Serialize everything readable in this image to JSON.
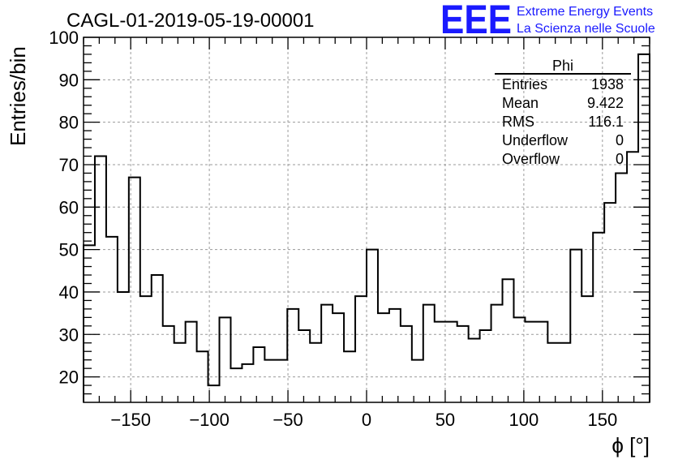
{
  "chart_data": {
    "type": "histogram",
    "title": "CAGL-01-2019-05-19-00001",
    "xlabel": "ϕ [°]",
    "ylabel": "Entries/bin",
    "xlim": [
      -180,
      180
    ],
    "ylim": [
      14,
      100
    ],
    "grid": true,
    "bin_edges_start": -180,
    "bin_width": 7.2,
    "values": [
      51,
      72,
      53,
      40,
      67,
      39,
      44,
      32,
      28,
      33,
      26,
      18,
      34,
      22,
      23,
      27,
      24,
      24,
      36,
      31,
      28,
      37,
      35,
      26,
      39,
      50,
      35,
      36,
      32,
      24,
      37,
      33,
      33,
      32,
      29,
      31,
      37,
      43,
      34,
      33,
      33,
      28,
      28,
      50,
      39,
      54,
      61,
      68,
      73,
      96
    ],
    "x_ticks": [
      -150,
      -100,
      -50,
      0,
      50,
      100,
      150
    ],
    "x_tick_labels": [
      "−150",
      "−100",
      "−50",
      "0",
      "50",
      "100",
      "150"
    ],
    "y_ticks": [
      20,
      30,
      40,
      50,
      60,
      70,
      80,
      90,
      100
    ],
    "y_tick_labels": [
      "20",
      "30",
      "40",
      "50",
      "60",
      "70",
      "80",
      "90",
      "100"
    ],
    "stats_box": {
      "name": "Phi",
      "rows": [
        {
          "label": "Entries",
          "value": "1938"
        },
        {
          "label": "Mean",
          "value": "9.422"
        },
        {
          "label": "RMS",
          "value": "116.1"
        },
        {
          "label": "Underflow",
          "value": "0"
        },
        {
          "label": "Overflow",
          "value": "0"
        }
      ]
    }
  },
  "logo": {
    "mark": "EEE",
    "line1": "Extreme Energy Events",
    "line2": "La Scienza nelle Scuole"
  }
}
